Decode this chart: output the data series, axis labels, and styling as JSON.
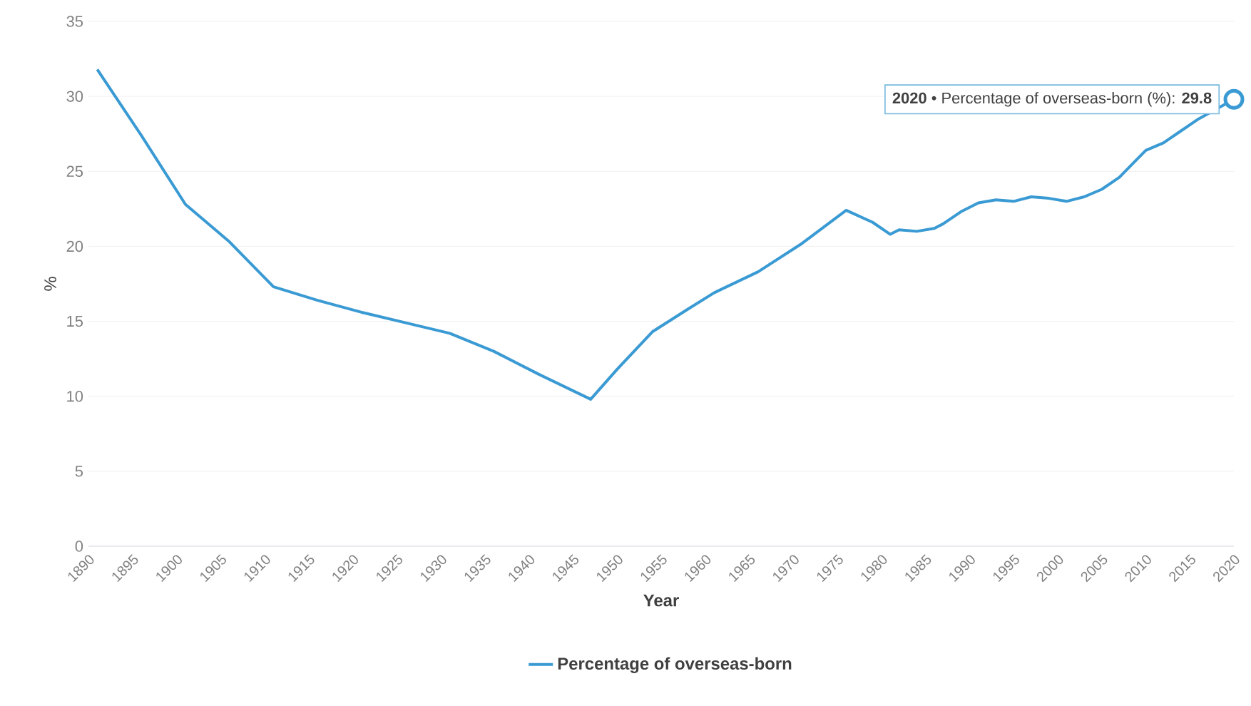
{
  "chart_data": {
    "type": "line",
    "xlabel": "Year",
    "ylabel": "%",
    "x": [
      1891,
      1896,
      1901,
      1906,
      1911,
      1916,
      1921,
      1926,
      1931,
      1936,
      1941,
      1947,
      1950,
      1954,
      1958,
      1961,
      1966,
      1971,
      1976,
      1979,
      1981,
      1982,
      1984,
      1986,
      1987,
      1989,
      1991,
      1993,
      1995,
      1997,
      1999,
      2001,
      2003,
      2005,
      2007,
      2009,
      2010,
      2012,
      2014,
      2016,
      2018,
      2020
    ],
    "series": [
      {
        "name": "Percentage of overseas-born",
        "color": "#3a9ad3",
        "values": [
          31.8,
          27.4,
          22.8,
          20.3,
          17.3,
          16.4,
          15.6,
          14.9,
          14.2,
          13.0,
          11.5,
          9.8,
          11.8,
          14.3,
          15.8,
          16.9,
          18.3,
          20.2,
          22.4,
          21.6,
          20.8,
          21.1,
          21.0,
          21.2,
          21.5,
          22.3,
          22.9,
          23.1,
          23.0,
          23.3,
          23.2,
          23.0,
          23.3,
          23.8,
          24.6,
          25.8,
          26.4,
          26.9,
          27.7,
          28.5,
          null,
          29.8
        ]
      }
    ],
    "xlim": [
      1890,
      2020
    ],
    "xticks": [
      1890,
      1895,
      1900,
      1905,
      1910,
      1915,
      1920,
      1925,
      1930,
      1935,
      1940,
      1945,
      1950,
      1955,
      1960,
      1965,
      1970,
      1975,
      1980,
      1985,
      1990,
      1995,
      2000,
      2005,
      2010,
      2015,
      2020
    ],
    "ylim": [
      0,
      35
    ],
    "yticks": [
      0,
      5,
      10,
      15,
      20,
      25,
      30,
      35
    ],
    "grid": "y",
    "legend": "bottom",
    "marker": "none",
    "line_style": "solid",
    "annotations": [
      {
        "text": "**2020** • Percentage of overseas-born (%): **29.8**",
        "x": 2020,
        "y": 29.8
      }
    ]
  }
}
